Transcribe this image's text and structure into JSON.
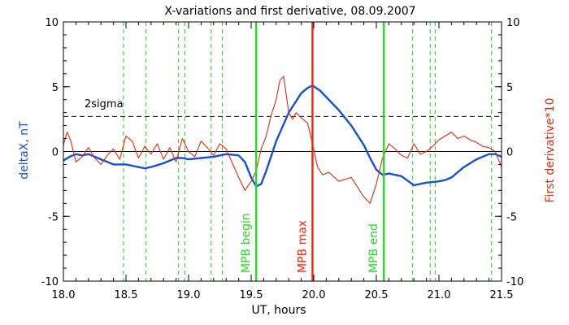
{
  "chart_data": {
    "type": "line",
    "title": "X-variations and first derivative, 08.09.2007",
    "xlabel": "UT, hours",
    "ylabel_left": "deltaX, nT",
    "ylabel_right": "First derivative*10",
    "xlim": [
      18.0,
      21.5
    ],
    "ylim": [
      -10,
      10
    ],
    "x_ticks": [
      18.0,
      18.5,
      19.0,
      19.5,
      20.0,
      20.5,
      21.0,
      21.5
    ],
    "x_tick_labels": [
      "18.0",
      "18.5",
      "19.0",
      "19.5",
      "20.0",
      "20.5",
      "21.0",
      "21.5"
    ],
    "y_ticks": [
      -10,
      -5,
      0,
      5,
      10
    ],
    "y_tick_labels": [
      "-10",
      "-5",
      "0",
      "5",
      "10"
    ],
    "colors": {
      "deltaX": "#1450d8",
      "derivative": "#e02a10",
      "mpb_begin_end": "#22dd22",
      "mpb_max": "#ff2200",
      "dashed_green": "#22cc22",
      "axis": "#000000",
      "sigma": "#000000"
    },
    "sigma_line": {
      "y": 2.7,
      "label": "2sigma"
    },
    "zero_line": 0,
    "dashed_vlines": [
      18.48,
      18.66,
      18.92,
      18.97,
      19.18,
      19.27,
      20.79,
      20.93,
      20.97,
      21.42
    ],
    "markers": [
      {
        "x": 19.54,
        "label": "MPB begin",
        "color": "#22dd22"
      },
      {
        "x": 19.99,
        "label": "MPB max",
        "color": "#ff2200"
      },
      {
        "x": 20.56,
        "label": "MPB end",
        "color": "#22dd22"
      }
    ],
    "series": [
      {
        "name": "deltaX, nT",
        "color": "#1450d8",
        "x": [
          18.0,
          18.05,
          18.1,
          18.15,
          18.2,
          18.3,
          18.4,
          18.5,
          18.55,
          18.6,
          18.65,
          18.7,
          18.8,
          18.9,
          18.95,
          19.0,
          19.1,
          19.2,
          19.3,
          19.4,
          19.45,
          19.5,
          19.54,
          19.58,
          19.62,
          19.7,
          19.8,
          19.9,
          19.95,
          19.99,
          20.05,
          20.1,
          20.2,
          20.3,
          20.4,
          20.45,
          20.5,
          20.55,
          20.6,
          20.7,
          20.8,
          20.9,
          21.0,
          21.05,
          21.1,
          21.2,
          21.3,
          21.4,
          21.45,
          21.5
        ],
        "y": [
          -0.7,
          -0.4,
          -0.2,
          -0.3,
          -0.2,
          -0.6,
          -1.0,
          -1.0,
          -1.1,
          -1.2,
          -1.3,
          -1.2,
          -0.9,
          -0.5,
          -0.5,
          -0.6,
          -0.5,
          -0.4,
          -0.2,
          -0.3,
          -0.8,
          -2.0,
          -2.7,
          -2.5,
          -1.5,
          0.8,
          3.0,
          4.5,
          4.9,
          5.1,
          4.7,
          4.2,
          3.2,
          2.0,
          0.5,
          -0.5,
          -1.4,
          -1.8,
          -1.7,
          -1.9,
          -2.6,
          -2.4,
          -2.3,
          -2.2,
          -2.0,
          -1.2,
          -0.6,
          -0.2,
          -0.2,
          -0.4
        ]
      },
      {
        "name": "First derivative*10",
        "color": "#e02a10",
        "x": [
          18.0,
          18.03,
          18.06,
          18.1,
          18.15,
          18.2,
          18.25,
          18.3,
          18.35,
          18.4,
          18.45,
          18.5,
          18.55,
          18.6,
          18.65,
          18.7,
          18.75,
          18.8,
          18.85,
          18.9,
          18.95,
          19.0,
          19.05,
          19.1,
          19.15,
          19.2,
          19.25,
          19.3,
          19.35,
          19.4,
          19.45,
          19.5,
          19.54,
          19.58,
          19.62,
          19.66,
          19.7,
          19.73,
          19.76,
          19.8,
          19.83,
          19.86,
          19.9,
          19.95,
          19.99,
          20.03,
          20.07,
          20.12,
          20.2,
          20.3,
          20.4,
          20.45,
          20.5,
          20.55,
          20.6,
          20.65,
          20.7,
          20.75,
          20.8,
          20.85,
          20.9,
          20.95,
          21.0,
          21.05,
          21.1,
          21.15,
          21.2,
          21.25,
          21.3,
          21.35,
          21.4,
          21.45,
          21.5
        ],
        "y": [
          0.5,
          1.5,
          0.8,
          -0.8,
          -0.4,
          0.3,
          -0.5,
          -1.0,
          -0.3,
          0.2,
          -0.6,
          1.2,
          0.8,
          -0.5,
          0.4,
          -0.2,
          0.6,
          -0.6,
          0.3,
          -0.8,
          1.0,
          0.0,
          -0.4,
          0.8,
          0.3,
          -0.3,
          0.6,
          0.2,
          -0.9,
          -2.0,
          -3.0,
          -2.3,
          -1.5,
          0.2,
          1.2,
          2.8,
          4.0,
          5.5,
          5.8,
          3.0,
          2.5,
          3.0,
          2.6,
          2.2,
          0.6,
          -1.2,
          -1.8,
          -1.6,
          -2.3,
          -2.0,
          -3.5,
          -4.0,
          -2.5,
          -0.5,
          0.6,
          0.2,
          -0.3,
          -0.5,
          0.6,
          -0.2,
          0.0,
          0.4,
          0.9,
          1.2,
          1.5,
          1.0,
          1.2,
          0.9,
          0.7,
          0.4,
          0.3,
          0.0,
          -1.2
        ]
      }
    ]
  }
}
